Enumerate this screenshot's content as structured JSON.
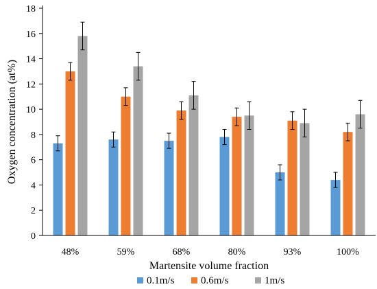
{
  "chart_data": {
    "type": "bar",
    "title": "",
    "xlabel": "Martensite volume fraction",
    "ylabel": "Oxygen concentration (at%)",
    "ylim": [
      0,
      18
    ],
    "yticks": [
      0,
      2,
      4,
      6,
      8,
      10,
      12,
      14,
      16,
      18
    ],
    "categories": [
      "48%",
      "59%",
      "68%",
      "80%",
      "93%",
      "100%"
    ],
    "grid": false,
    "legend_position": "bottom",
    "series": [
      {
        "name": "0.1m/s",
        "color": "#5B9BD5",
        "values": [
          7.3,
          7.6,
          7.5,
          7.8,
          5.0,
          4.4
        ],
        "errors": [
          0.6,
          0.6,
          0.6,
          0.6,
          0.6,
          0.6
        ]
      },
      {
        "name": "0.6m/s",
        "color": "#ED7D31",
        "values": [
          13.0,
          11.0,
          9.9,
          9.4,
          9.1,
          8.2
        ],
        "errors": [
          0.7,
          0.7,
          0.7,
          0.7,
          0.7,
          0.7
        ]
      },
      {
        "name": "1m/s",
        "color": "#A5A5A5",
        "values": [
          15.8,
          13.4,
          11.1,
          9.5,
          8.9,
          9.6
        ],
        "errors": [
          1.1,
          1.1,
          1.1,
          1.1,
          1.1,
          1.1
        ]
      }
    ]
  }
}
